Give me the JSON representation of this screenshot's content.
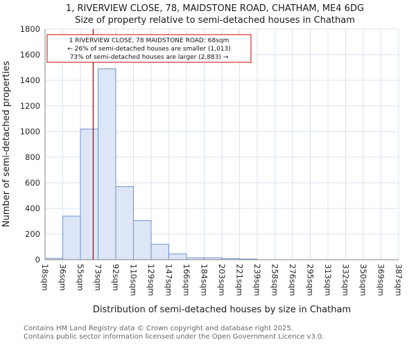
{
  "title_line1": "1, RIVERVIEW CLOSE, 78, MAIDSTONE ROAD, CHATHAM, ME4 6DG",
  "title_line2": "Size of property relative to semi-detached houses in Chatham",
  "chart_data": {
    "type": "bar",
    "title": "Size of property relative to semi-detached houses in Chatham",
    "xlabel": "Distribution of semi-detached houses by size in Chatham",
    "ylabel": "Number of semi-detached properties",
    "ylim": [
      0,
      1800
    ],
    "ytick_step": 200,
    "bin_edges_sqm": [
      18,
      36,
      55,
      73,
      92,
      110,
      129,
      147,
      166,
      184,
      203,
      221,
      239,
      258,
      276,
      295,
      313,
      332,
      350,
      369,
      387
    ],
    "tick_labels": [
      "18sqm",
      "36sqm",
      "55sqm",
      "73sqm",
      "92sqm",
      "110sqm",
      "129sqm",
      "147sqm",
      "166sqm",
      "184sqm",
      "203sqm",
      "221sqm",
      "239sqm",
      "258sqm",
      "276sqm",
      "295sqm",
      "313sqm",
      "332sqm",
      "350sqm",
      "369sqm",
      "387sqm"
    ],
    "values": [
      10,
      340,
      1020,
      1490,
      570,
      305,
      120,
      45,
      15,
      15,
      8,
      5,
      0,
      0,
      0,
      0,
      0,
      0,
      0,
      0
    ],
    "marker_value_sqm": 68,
    "bar_fill": "#dce6f6",
    "bar_stroke": "#6d93c8",
    "marker_color": "#cc0000",
    "grid_color": "#d9e1f2",
    "axis_color": "#808080",
    "legend_position": "none",
    "grid": true
  },
  "annotation": {
    "line1": "1 RIVERVIEW CLOSE, 78 MAIDSTONE ROAD: 68sqm",
    "line2": "← 26% of semi-detached houses are smaller (1,013)",
    "line3": "73% of semi-detached houses are larger (2,883) →"
  },
  "footer": {
    "line1": "Contains HM Land Registry data © Crown copyright and database right 2025.",
    "line2": "Contains public sector information licensed under the Open Government Licence v3.0."
  }
}
